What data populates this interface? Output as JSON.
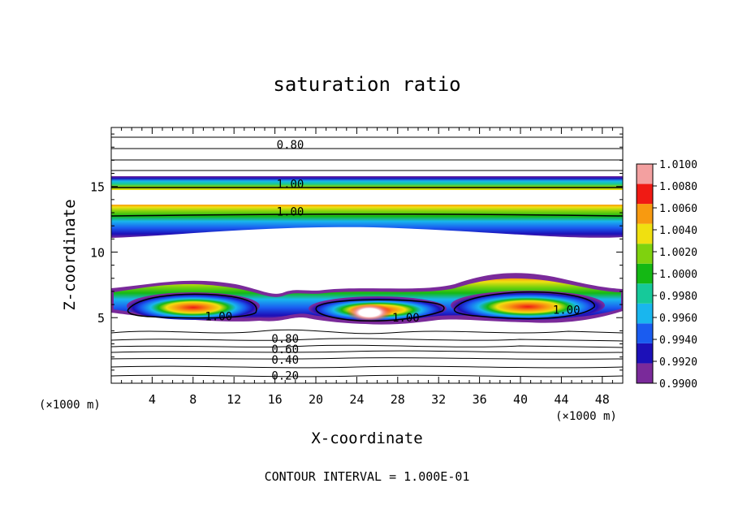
{
  "chart_data": {
    "type": "heatmap",
    "title": "saturation ratio",
    "xlabel": "X-coordinate",
    "ylabel": "Z-coordinate",
    "x_unit_left": "(×1000 m)",
    "x_unit_right": "(×1000 m)",
    "footer": "CONTOUR INTERVAL = 1.000E-01",
    "xlim": [
      0,
      50
    ],
    "ylim": [
      0,
      19.5
    ],
    "x_ticks": [
      4,
      8,
      12,
      16,
      20,
      24,
      28,
      32,
      36,
      40,
      44,
      48
    ],
    "y_ticks": [
      5,
      10,
      15
    ],
    "colorbar": {
      "levels": [
        0.99,
        0.992,
        0.994,
        0.996,
        0.998,
        1.0,
        1.002,
        1.004,
        1.006,
        1.008,
        1.01
      ],
      "tick_labels": [
        "0.9900",
        "0.9920",
        "0.9940",
        "0.9960",
        "0.9980",
        "1.0000",
        "1.0020",
        "1.0040",
        "1.0060",
        "1.0080",
        "1.0100"
      ],
      "colors": [
        "#7a2a9a",
        "#1c10b8",
        "#1a5cf0",
        "#19b6ee",
        "#16c99a",
        "#14b814",
        "#7fd20e",
        "#f0e010",
        "#f89a10",
        "#f01a14",
        "#f3a0a0"
      ]
    },
    "contour_labels": [
      {
        "text": "0.80",
        "x": 17.5,
        "z": 18.2
      },
      {
        "text": "1.00",
        "x": 17.5,
        "z": 15.2
      },
      {
        "text": "1.00",
        "x": 17.5,
        "z": 13.1
      },
      {
        "text": "1.00",
        "x": 10.5,
        "z": 5.1
      },
      {
        "text": "1.00",
        "x": 28.8,
        "z": 5.0
      },
      {
        "text": "1.00",
        "x": 44.5,
        "z": 5.6
      },
      {
        "text": "0.80",
        "x": 17.0,
        "z": 3.4
      },
      {
        "text": "0.60",
        "x": 17.0,
        "z": 2.6
      },
      {
        "text": "0.40",
        "x": 17.0,
        "z": 1.8
      },
      {
        "text": "0.20",
        "x": 17.0,
        "z": 0.6
      }
    ]
  }
}
